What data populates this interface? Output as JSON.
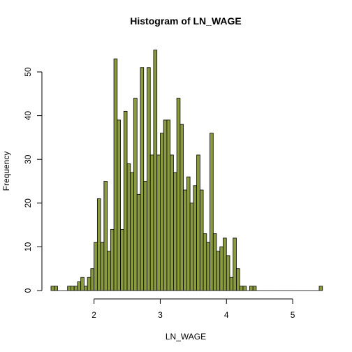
{
  "chart_data": {
    "type": "bar",
    "title": "Histogram of LN_WAGE",
    "xlabel": "LN_WAGE",
    "ylabel": "Frequency",
    "bar_color": "#8a9a3e",
    "bin_start": 1.35,
    "bin_width": 0.05,
    "values": [
      1,
      1,
      0,
      0,
      0,
      1,
      1,
      1,
      2,
      3,
      1,
      3,
      5,
      11,
      21,
      11,
      25,
      9,
      14,
      53,
      39,
      14,
      41,
      29,
      27,
      44,
      22,
      51,
      25,
      51,
      31,
      55,
      31,
      36,
      39,
      39,
      31,
      27,
      44,
      38,
      23,
      26,
      20,
      24,
      31,
      23,
      13,
      11,
      36,
      13,
      9,
      10,
      12,
      8,
      3,
      12,
      5,
      1,
      1,
      0,
      1,
      1,
      0,
      0,
      0,
      0,
      0,
      0,
      0,
      0,
      0,
      0,
      0,
      0,
      0,
      0,
      0,
      0,
      0,
      0,
      0,
      1
    ],
    "xlim": [
      1.35,
      5.4
    ],
    "ylim": [
      0,
      55
    ],
    "xticks": [
      "2",
      "3",
      "4",
      "5"
    ],
    "yticks": [
      "0",
      "10",
      "20",
      "30",
      "40",
      "50"
    ],
    "grid": false
  }
}
